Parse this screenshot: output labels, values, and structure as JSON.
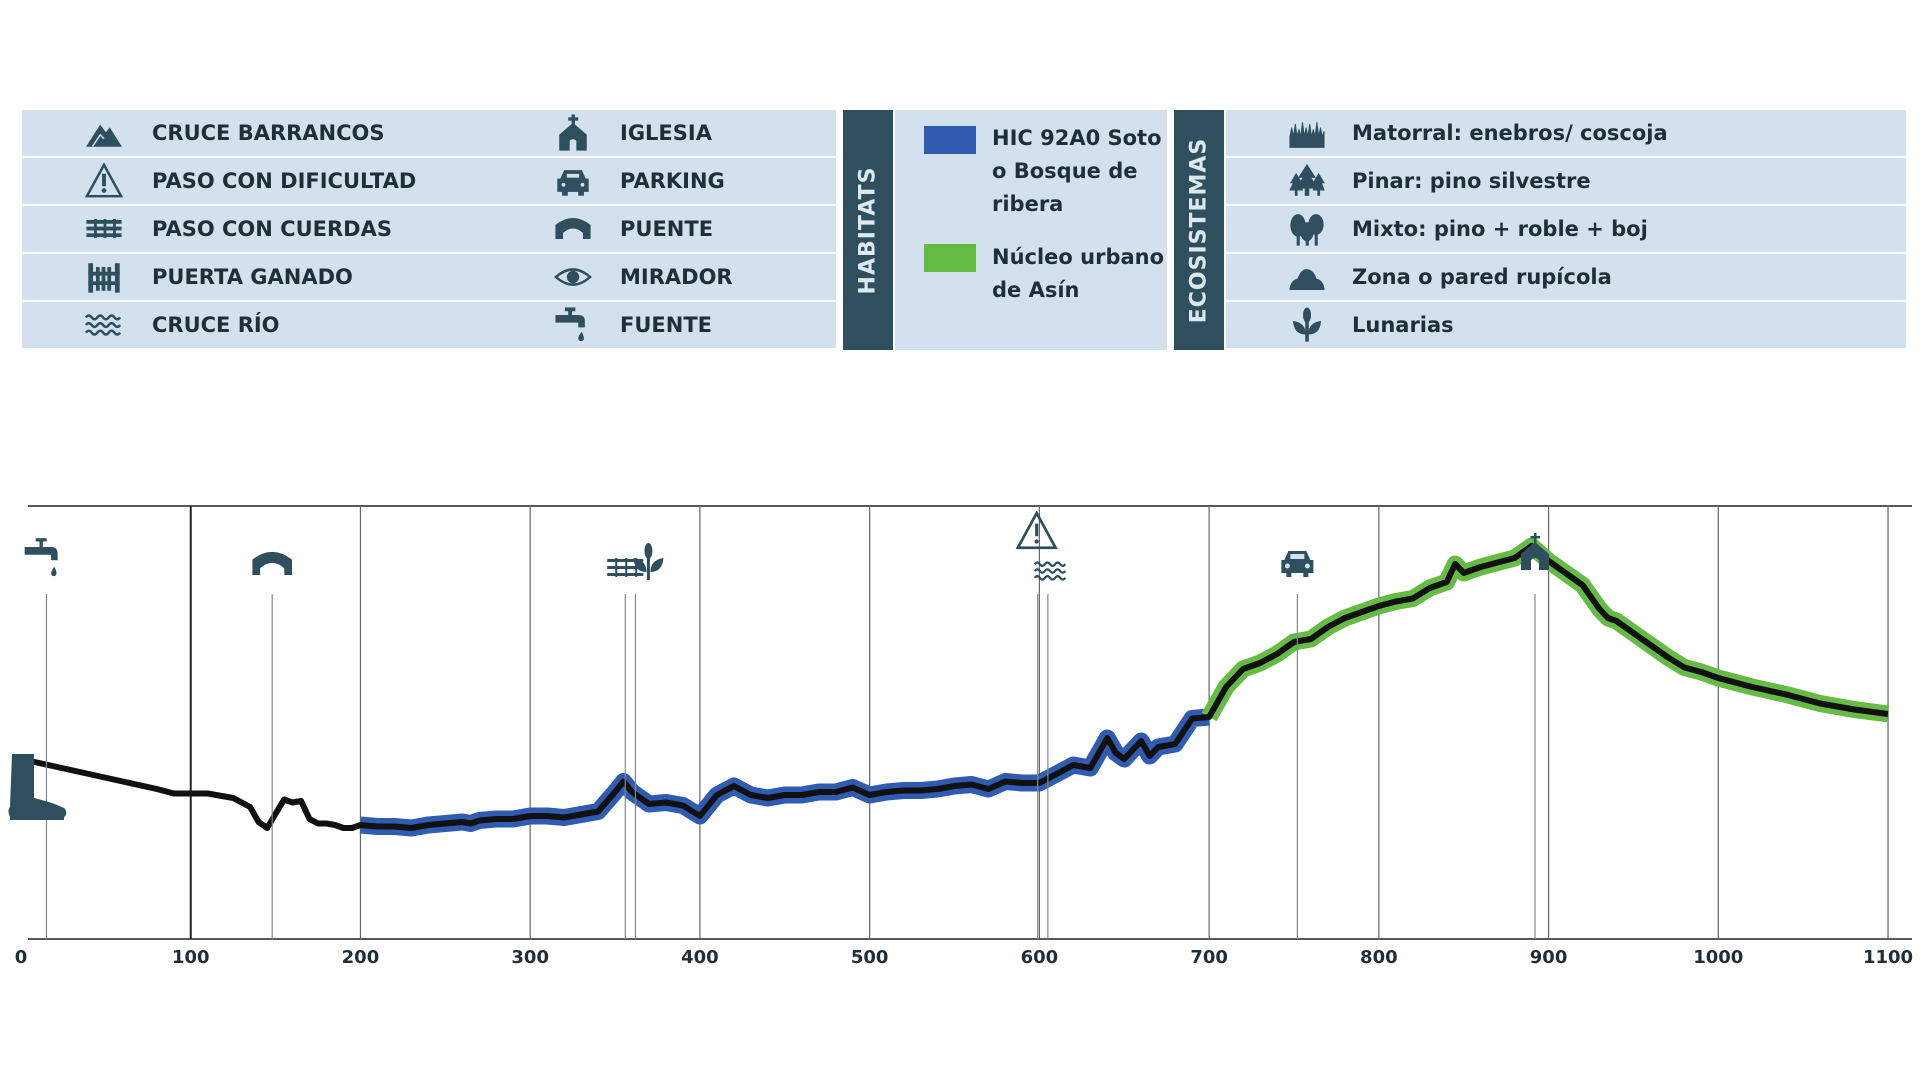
{
  "legend": {
    "col1": [
      {
        "icon": "mountain-icon",
        "label": "CRUCE BARRANCOS"
      },
      {
        "icon": "warning-icon",
        "label": "PASO CON DIFICULTAD"
      },
      {
        "icon": "rope-bridge-icon",
        "label": "PASO CON CUERDAS"
      },
      {
        "icon": "fence-gate-icon",
        "label": "PUERTA GANADO"
      },
      {
        "icon": "waves-icon",
        "label": "CRUCE RÍO"
      }
    ],
    "col2": [
      {
        "icon": "church-icon",
        "label": "IGLESIA"
      },
      {
        "icon": "car-icon",
        "label": "PARKING"
      },
      {
        "icon": "bridge-icon",
        "label": "PUENTE"
      },
      {
        "icon": "eye-icon",
        "label": "MIRADOR"
      },
      {
        "icon": "faucet-icon",
        "label": "FUENTE"
      }
    ]
  },
  "habitats": {
    "title": "HABITATS",
    "items": [
      {
        "color": "#2f5bb0",
        "lines": [
          "HIC 92A0 Soto",
          "o Bosque de",
          "ribera"
        ]
      },
      {
        "color": "#66bb44",
        "lines": [
          "Núcleo urbano",
          "de Asín"
        ]
      }
    ]
  },
  "ecosistemas": {
    "title": "ECOSISTEMAS",
    "items": [
      {
        "icon": "grass-icon",
        "label": "Matorral: enebros/ coscoja"
      },
      {
        "icon": "pine-trees-icon",
        "label": "Pinar: pino silvestre"
      },
      {
        "icon": "mixed-trees-icon",
        "label": "Mixto: pino + roble + boj"
      },
      {
        "icon": "rock-wall-icon",
        "label": "Zona o pared rupícola"
      },
      {
        "icon": "lunaria-plant-icon",
        "label": "Lunarias"
      }
    ]
  },
  "colors": {
    "panel_bg": "#d3e1ee",
    "dark": "#2f4f5e",
    "habitat_blue": "#2f5bb0",
    "habitat_green": "#66bb44",
    "profile": "#111111"
  },
  "chart_data": {
    "type": "line",
    "title": "",
    "xlabel": "",
    "ylabel": "",
    "xlim": [
      0,
      1110
    ],
    "x_ticks": [
      0,
      100,
      200,
      300,
      400,
      500,
      600,
      700,
      800,
      900,
      1000,
      1100
    ],
    "grid": "vertical",
    "series": [
      {
        "x": [
          0,
          20,
          40,
          60,
          80,
          90,
          100,
          110,
          120,
          125,
          135,
          140,
          145,
          155,
          160,
          165,
          170,
          175,
          180,
          185,
          190,
          195,
          200,
          210,
          220,
          230,
          240,
          250,
          260,
          265,
          270,
          280,
          290,
          300,
          310,
          320,
          330,
          340,
          350,
          355,
          360,
          370,
          380,
          390,
          400,
          410,
          420,
          430,
          440,
          450,
          460,
          470,
          480,
          490,
          500,
          510,
          520,
          530,
          540,
          550,
          560,
          570,
          580,
          590,
          600,
          610,
          620,
          630,
          640,
          645,
          650,
          660,
          665,
          670,
          680,
          690,
          700,
          710,
          720,
          730,
          740,
          750,
          760,
          770,
          780,
          790,
          800,
          810,
          820,
          830,
          840,
          845,
          850,
          860,
          870,
          880,
          890,
          900,
          910,
          920,
          930,
          935,
          940,
          950,
          960,
          970,
          980,
          990,
          1000,
          1020,
          1040,
          1060,
          1080,
          1100
        ],
        "y": [
          18.0,
          15.5,
          13.0,
          10.5,
          8.0,
          6.5,
          6.5,
          6.5,
          5.5,
          5.0,
          2.0,
          -3.0,
          -5.0,
          4.5,
          3.5,
          4.0,
          -2.0,
          -3.5,
          -3.5,
          -4.0,
          -5.0,
          -5.0,
          -4.0,
          -4.5,
          -4.5,
          -5.0,
          -4.0,
          -3.5,
          -3.0,
          -3.5,
          -2.5,
          -2.0,
          -2.0,
          -1.0,
          -1.0,
          -1.5,
          -0.5,
          0.5,
          7.0,
          10.5,
          7.0,
          3.0,
          3.5,
          2.5,
          -1.0,
          6.0,
          9.0,
          6.0,
          5.0,
          6.0,
          6.0,
          7.0,
          7.0,
          8.5,
          6.0,
          7.0,
          7.5,
          7.5,
          8.0,
          9.0,
          9.5,
          8.0,
          10.5,
          10.0,
          10.0,
          13.0,
          16.0,
          15.0,
          25.0,
          20.0,
          18.0,
          24.0,
          19.0,
          22.0,
          23.0,
          31.5,
          32.0,
          42.0,
          48.0,
          50.0,
          53.0,
          57.0,
          58.0,
          62.0,
          65.0,
          67.0,
          69.0,
          70.5,
          71.5,
          75.0,
          77.0,
          83.0,
          80.0,
          82.0,
          83.5,
          85.0,
          89.0,
          84.0,
          80.0,
          76.0,
          68.0,
          65.0,
          64.0,
          60.0,
          56.0,
          52.0,
          48.5,
          47.0,
          45.0,
          42.0,
          39.5,
          36.5,
          34.5,
          33.0
        ]
      }
    ],
    "habitats_along_profile": [
      {
        "habitat": "HIC 92A0 Soto o Bosque de ribera",
        "from": 200,
        "to": 700
      },
      {
        "habitat": "Núcleo urbano de Asín",
        "from": 700,
        "to": 1100
      }
    ],
    "markers": [
      {
        "x": 15,
        "icon": "faucet-icon"
      },
      {
        "x": 148,
        "icon": "bridge-icon"
      },
      {
        "x": 356,
        "icon": "rope-bridge-icon"
      },
      {
        "x": 362,
        "icon": "lunaria-plant-icon"
      },
      {
        "x": 599,
        "icon": "warning-icon"
      },
      {
        "x": 605,
        "icon": "waves-icon"
      },
      {
        "x": 752,
        "icon": "car-icon"
      },
      {
        "x": 892,
        "icon": "church-icon"
      }
    ]
  }
}
